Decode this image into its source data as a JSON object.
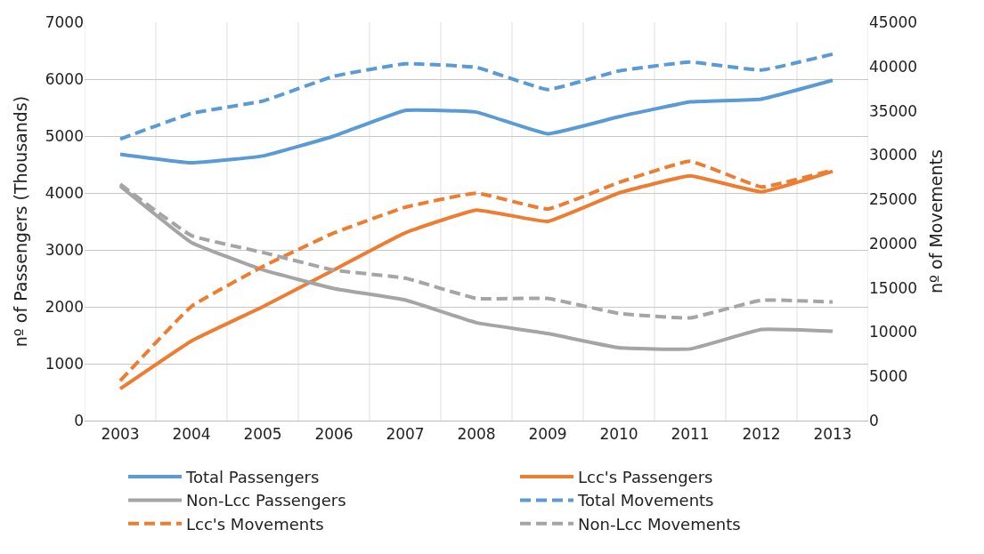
{
  "chart_data": {
    "type": "line",
    "categories": [
      "2003",
      "2004",
      "2005",
      "2006",
      "2007",
      "2008",
      "2009",
      "2010",
      "2011",
      "2012",
      "2013"
    ],
    "ylabel": "nº of Passengers (Thousands)",
    "y2label": "nº of Movements",
    "ylim": [
      0,
      7000
    ],
    "yticks": [
      0,
      1000,
      2000,
      3000,
      4000,
      5000,
      6000,
      7000
    ],
    "y2lim": [
      0,
      45000
    ],
    "y2ticks": [
      0,
      5000,
      10000,
      15000,
      20000,
      25000,
      30000,
      35000,
      40000,
      45000
    ],
    "grid": true,
    "legend": "bottom",
    "marker": "none",
    "series": [
      {
        "name": "Total Passengers",
        "color": "#5b9bd5",
        "line_style": "solid",
        "values": [
          4680,
          4530,
          4650,
          5000,
          5450,
          5420,
          5040,
          5340,
          5600,
          5650,
          5980
        ]
      },
      {
        "name": "Lcc's Passengers",
        "color": "#ed7d31",
        "line_style": "solid",
        "values": [
          560,
          1400,
          2000,
          2650,
          3300,
          3700,
          3500,
          4000,
          4300,
          4020,
          4380
        ]
      },
      {
        "name": "Non-Lcc Passengers",
        "color": "#a5a5a5",
        "line_style": "solid",
        "values": [
          4120,
          3130,
          2650,
          2320,
          2120,
          1720,
          1530,
          1280,
          1260,
          1600,
          1570
        ]
      },
      {
        "name": "Total Movements",
        "color": "#5b9bd5",
        "line_style": "dashed",
        "axis": "y2",
        "values": [
          31800,
          34700,
          36100,
          38900,
          40300,
          39900,
          37400,
          39500,
          40500,
          39600,
          41400
        ]
      },
      {
        "name": "Lcc's Movements",
        "color": "#ed7d31",
        "line_style": "dashed",
        "axis": "y2",
        "values": [
          4500,
          12900,
          17400,
          21200,
          24100,
          25700,
          23900,
          26900,
          29300,
          26400,
          28300
        ]
      },
      {
        "name": "Non-Lcc Movements",
        "color": "#a5a5a5",
        "line_style": "dashed",
        "axis": "y2",
        "values": [
          26700,
          20900,
          19000,
          17000,
          16100,
          13800,
          13800,
          12100,
          11600,
          13600,
          13400
        ]
      }
    ]
  }
}
